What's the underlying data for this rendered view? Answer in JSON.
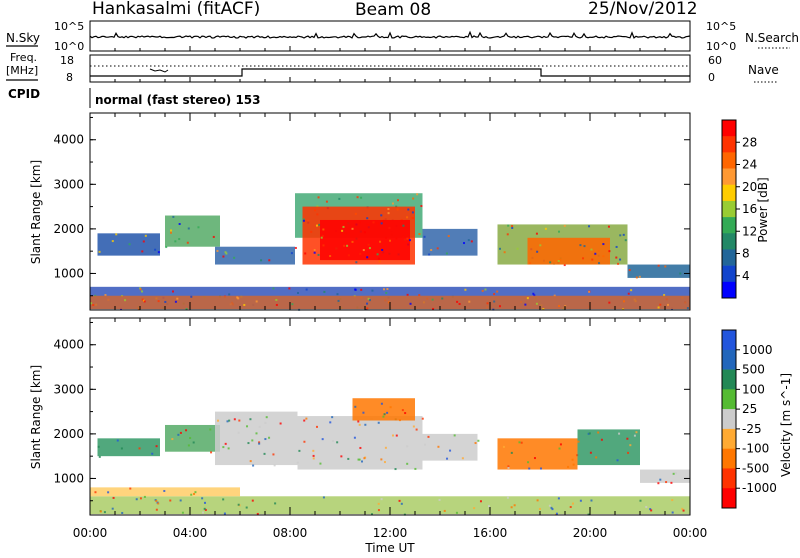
{
  "header": {
    "station": "Hankasalmi (fitACF)",
    "beam": "Beam 08",
    "date": "25/Nov/2012"
  },
  "strip": {
    "nsky_label": "N.Sky",
    "nsky_ticks": [
      "10^5",
      "10^0"
    ],
    "nsearch_label": "N.Search",
    "nsearch_ticks": [
      "10^5",
      "10^0"
    ],
    "freq_label_1": "Freq.",
    "freq_label_2": "[MHz]",
    "freq_ticks": [
      "18",
      "8"
    ],
    "nave_label": "Nave",
    "nave_ticks": [
      "60",
      "0"
    ],
    "cpid_label": "CPID",
    "cpid_text": "normal (fast stereo) 153"
  },
  "chart_data": [
    {
      "type": "heatmap",
      "name": "power",
      "ylabel": "Slant Range [km]",
      "xlabel": "",
      "x_ticks": [
        "00:00",
        "04:00",
        "08:00",
        "12:00",
        "16:00",
        "20:00",
        "00:00"
      ],
      "y_ticks": [
        "1000",
        "2000",
        "3000",
        "4000"
      ],
      "xlim_hours": [
        0,
        24
      ],
      "ylim_km": [
        180,
        4600
      ],
      "colorbar": {
        "label": "Power [dB]",
        "ticks": [
          "28",
          "24",
          "20",
          "16",
          "12",
          "8",
          "4"
        ],
        "colors": [
          "#ff0000",
          "#ff3300",
          "#ff6600",
          "#ff9933",
          "#ffcc00",
          "#99cc33",
          "#33aa55",
          "#228866",
          "#226699",
          "#1144cc",
          "#0000ff"
        ]
      },
      "regions": [
        {
          "t0": 0.0,
          "t1": 24.0,
          "r0": 200,
          "r1": 700,
          "color": "#3355bb"
        },
        {
          "t0": 0.0,
          "t1": 24.0,
          "r0": 200,
          "r1": 500,
          "color": "#cc6633"
        },
        {
          "t0": 0.3,
          "t1": 2.8,
          "r0": 1400,
          "r1": 1900,
          "color": "#2255aa"
        },
        {
          "t0": 3.0,
          "t1": 5.2,
          "r0": 1600,
          "r1": 2300,
          "color": "#55aa66"
        },
        {
          "t0": 5.0,
          "t1": 8.2,
          "r0": 1200,
          "r1": 1600,
          "color": "#3366aa"
        },
        {
          "t0": 8.2,
          "t1": 13.3,
          "r0": 1800,
          "r1": 2800,
          "color": "#44aa77"
        },
        {
          "t0": 8.5,
          "t1": 13.0,
          "r0": 1200,
          "r1": 2500,
          "color": "#ff3300"
        },
        {
          "t0": 9.2,
          "t1": 12.8,
          "r0": 1300,
          "r1": 2200,
          "color": "#ff0000"
        },
        {
          "t0": 13.3,
          "t1": 15.5,
          "r0": 1400,
          "r1": 2000,
          "color": "#3366aa"
        },
        {
          "t0": 16.3,
          "t1": 21.5,
          "r0": 1200,
          "r1": 2100,
          "color": "#88aa44"
        },
        {
          "t0": 17.5,
          "t1": 20.8,
          "r0": 1200,
          "r1": 1800,
          "color": "#ff6600"
        },
        {
          "t0": 21.5,
          "t1": 24.0,
          "r0": 900,
          "r1": 1200,
          "color": "#226699"
        }
      ]
    },
    {
      "type": "heatmap",
      "name": "velocity",
      "ylabel": "Slant Range [km]",
      "xlabel": "Time UT",
      "x_ticks": [
        "00:00",
        "04:00",
        "08:00",
        "12:00",
        "16:00",
        "20:00",
        "00:00"
      ],
      "y_ticks": [
        "1000",
        "2000",
        "3000",
        "4000"
      ],
      "xlim_hours": [
        0,
        24
      ],
      "ylim_km": [
        180,
        4600
      ],
      "colorbar": {
        "label": "Velocity [m s^-1]",
        "ticks": [
          "1000",
          "500",
          "100",
          "25",
          "-25",
          "-100",
          "-500",
          "-1000"
        ],
        "colors": [
          "#2255dd",
          "#2266bb",
          "#228855",
          "#55bb33",
          "#cccccc",
          "#ffaa33",
          "#ff7700",
          "#ff3300",
          "#ff0000"
        ]
      },
      "regions": [
        {
          "t0": 0.0,
          "t1": 24.0,
          "r0": 200,
          "r1": 600,
          "color": "#aacc66"
        },
        {
          "t0": 0.0,
          "t1": 6.0,
          "r0": 600,
          "r1": 800,
          "color": "#ffcc66"
        },
        {
          "t0": 0.3,
          "t1": 2.8,
          "r0": 1500,
          "r1": 1900,
          "color": "#339966"
        },
        {
          "t0": 3.0,
          "t1": 5.2,
          "r0": 1600,
          "r1": 2200,
          "color": "#55aa66"
        },
        {
          "t0": 5.0,
          "t1": 8.3,
          "r0": 1300,
          "r1": 2500,
          "color": "#cccccc"
        },
        {
          "t0": 8.3,
          "t1": 13.3,
          "r0": 1200,
          "r1": 2400,
          "color": "#cccccc"
        },
        {
          "t0": 10.5,
          "t1": 13.0,
          "r0": 2300,
          "r1": 2800,
          "color": "#ff7700"
        },
        {
          "t0": 13.3,
          "t1": 15.5,
          "r0": 1400,
          "r1": 2000,
          "color": "#cccccc"
        },
        {
          "t0": 16.3,
          "t1": 19.5,
          "r0": 1200,
          "r1": 1900,
          "color": "#ff7700"
        },
        {
          "t0": 19.5,
          "t1": 22.0,
          "r0": 1300,
          "r1": 2100,
          "color": "#339966"
        },
        {
          "t0": 22.0,
          "t1": 24.0,
          "r0": 900,
          "r1": 1200,
          "color": "#cccccc"
        }
      ]
    }
  ]
}
